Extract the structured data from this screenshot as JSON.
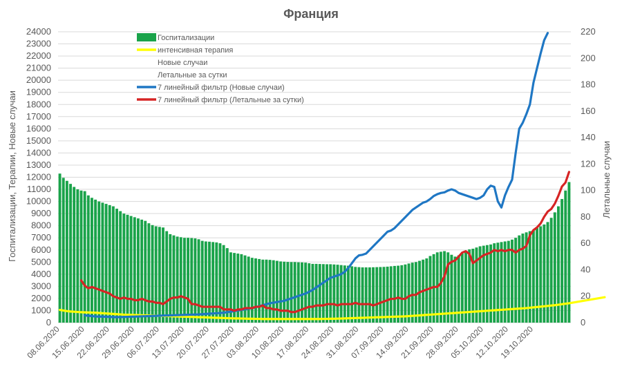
{
  "chart_data": {
    "type": "bar",
    "title": "Франция",
    "ylabel_left": "Госпитализации, Терапии, Новые случаи",
    "ylabel_right": "Летальные случаи",
    "ylim_left": [
      0,
      24000
    ],
    "ylim_right": [
      0,
      220
    ],
    "yticks_left": [
      0,
      1000,
      2000,
      3000,
      4000,
      5000,
      6000,
      7000,
      8000,
      9000,
      10000,
      11000,
      12000,
      13000,
      14000,
      15000,
      16000,
      17000,
      18000,
      19000,
      20000,
      21000,
      22000,
      23000,
      24000
    ],
    "yticks_right": [
      0,
      20,
      40,
      60,
      80,
      100,
      120,
      140,
      160,
      180,
      200,
      220
    ],
    "x_tick_labels": [
      "08.06.2020",
      "15.06.2020",
      "22.06.2020",
      "29.06.2020",
      "06.07.2020",
      "13.07.2020",
      "20.07.2020",
      "27.07.2020",
      "03.08.2020",
      "10.08.2020",
      "17.08.2020",
      "24.08.2020",
      "31.08.2020",
      "07.09.2020",
      "14.09.2020",
      "21.09.2020",
      "28.09.2020",
      "05.10.2020",
      "12.10.2020",
      "19.10.2020"
    ],
    "x_start": "08.06.2020",
    "x_end": "21.10.2020",
    "grid": true,
    "legend_position": "top-left",
    "legend": [
      "Госпитализации",
      "интенсивная терапия",
      "Новые случаи",
      "Летальные за сутки",
      "7 линейный фильтр (Новые случаи)",
      "7 линейный фильтр (Летальные за сутки)"
    ],
    "series": [
      {
        "name": "Госпитализации",
        "type": "bar",
        "axis": "left",
        "color": "#1aa34a",
        "values": [
          12300,
          11950,
          11700,
          11450,
          11200,
          11000,
          10900,
          10850,
          10500,
          10300,
          10150,
          10000,
          9900,
          9800,
          9700,
          9600,
          9400,
          9200,
          9000,
          8900,
          8800,
          8700,
          8600,
          8500,
          8400,
          8200,
          8050,
          7950,
          7900,
          7850,
          7550,
          7300,
          7200,
          7100,
          7050,
          7000,
          7000,
          6980,
          6950,
          6880,
          6750,
          6700,
          6680,
          6650,
          6620,
          6550,
          6400,
          6150,
          5800,
          5750,
          5700,
          5650,
          5550,
          5450,
          5350,
          5300,
          5250,
          5200,
          5200,
          5180,
          5150,
          5100,
          5050,
          5030,
          5010,
          5000,
          5000,
          4980,
          4970,
          4950,
          4900,
          4850,
          4850,
          4840,
          4830,
          4820,
          4820,
          4800,
          4780,
          4750,
          4720,
          4700,
          4650,
          4600,
          4580,
          4560,
          4560,
          4560,
          4570,
          4580,
          4590,
          4600,
          4620,
          4650,
          4680,
          4700,
          4740,
          4800,
          4880,
          4950,
          5000,
          5100,
          5200,
          5300,
          5500,
          5650,
          5800,
          5850,
          5900,
          5800,
          5600,
          5450,
          5550,
          5700,
          5900,
          6050,
          6100,
          6200,
          6300,
          6350,
          6400,
          6450,
          6550,
          6600,
          6650,
          6700,
          6750,
          6850,
          7000,
          7200,
          7350,
          7450,
          7550,
          7650,
          7800,
          7950,
          8100,
          8300,
          8650,
          9100,
          9600,
          10200,
          10900,
          11600
        ]
      },
      {
        "name": "интенсивная терапия",
        "type": "line",
        "axis": "left",
        "color": "#ffff00",
        "values": [
          1050,
          1000,
          950,
          920,
          900,
          880,
          860,
          850,
          840,
          830,
          820,
          800,
          780,
          760,
          740,
          720,
          700,
          680,
          660,
          650,
          640,
          630,
          620,
          610,
          600,
          590,
          580,
          570,
          560,
          550,
          540,
          530,
          520,
          510,
          500,
          490,
          480,
          470,
          460,
          450,
          440,
          430,
          420,
          410,
          400,
          390,
          380,
          370,
          360,
          350,
          350,
          340,
          330,
          320,
          320,
          310,
          310,
          300,
          300,
          300,
          300,
          300,
          300,
          300,
          300,
          300,
          300,
          300,
          300,
          300,
          300,
          300,
          300,
          300,
          310,
          310,
          320,
          320,
          330,
          340,
          350,
          360,
          370,
          380,
          390,
          400,
          410,
          420,
          430,
          440,
          450,
          460,
          470,
          480,
          490,
          500,
          510,
          520,
          540,
          560,
          580,
          600,
          620,
          640,
          660,
          680,
          700,
          720,
          740,
          760,
          780,
          800,
          820,
          840,
          860,
          880,
          900,
          920,
          940,
          960,
          980,
          1000,
          1020,
          1040,
          1060,
          1080,
          1100,
          1120,
          1140,
          1160,
          1180,
          1200,
          1230,
          1260,
          1290,
          1320,
          1350,
          1380,
          1410,
          1440,
          1480,
          1520,
          1560,
          1600,
          1650,
          1700,
          1750,
          1800,
          1850,
          1900,
          1950,
          2000,
          2050,
          2100
        ]
      },
      {
        "name": "7 линейный фильтр (Новые случаи)",
        "type": "line",
        "axis": "left",
        "color": "#1f77c4",
        "x_offset": 7,
        "values": [
          600,
          570,
          540,
          510,
          500,
          490,
          480,
          470,
          460,
          450,
          460,
          470,
          480,
          490,
          500,
          510,
          520,
          530,
          540,
          550,
          560,
          570,
          580,
          590,
          600,
          610,
          620,
          630,
          640,
          650,
          660,
          670,
          680,
          700,
          720,
          740,
          760,
          780,
          800,
          820,
          860,
          900,
          950,
          1000,
          1050,
          1100,
          1150,
          1200,
          1280,
          1360,
          1440,
          1520,
          1600,
          1650,
          1700,
          1750,
          1800,
          1900,
          2000,
          2100,
          2200,
          2300,
          2400,
          2550,
          2700,
          2900,
          3100,
          3300,
          3500,
          3700,
          3800,
          3900,
          4000,
          4200,
          4500,
          4900,
          5300,
          5550,
          5600,
          5700,
          6000,
          6300,
          6600,
          6900,
          7200,
          7500,
          7600,
          7800,
          8100,
          8400,
          8700,
          9000,
          9300,
          9500,
          9700,
          9900,
          10000,
          10200,
          10450,
          10600,
          10700,
          10750,
          10900,
          11000,
          10900,
          10700,
          10600,
          10500,
          10400,
          10300,
          10200,
          10300,
          10500,
          11000,
          11300,
          11200,
          10000,
          9500,
          10500,
          11200,
          11800,
          14000,
          16000,
          16500,
          17200,
          18000,
          19800,
          21000,
          22200,
          23300,
          23900
        ]
      },
      {
        "name": "7 линейный фильтр (Летальные за сутки)",
        "type": "line",
        "axis": "right",
        "color": "#d62424",
        "x_offset": 6,
        "values": [
          32,
          28,
          26,
          27,
          26,
          25,
          24,
          23,
          22,
          20,
          19,
          18,
          19,
          18,
          18,
          17,
          17,
          18,
          17,
          16,
          16,
          15,
          15,
          14,
          16,
          18,
          19,
          19,
          20,
          19,
          18,
          14,
          14,
          13,
          12,
          12,
          12,
          12,
          12,
          12,
          10,
          10,
          10,
          9,
          10,
          10,
          11,
          11,
          11,
          12,
          12,
          13,
          11,
          11,
          10,
          10,
          9,
          9,
          9,
          8,
          8,
          9,
          10,
          11,
          12,
          12,
          13,
          13,
          13,
          14,
          14,
          14,
          13,
          14,
          14,
          14,
          14,
          15,
          14,
          14,
          14,
          14,
          13,
          14,
          15,
          16,
          17,
          18,
          18,
          19,
          18,
          18,
          20,
          21,
          21,
          23,
          24,
          25,
          26,
          27,
          27,
          30,
          35,
          44,
          46,
          47,
          50,
          53,
          54,
          52,
          45,
          47,
          49,
          51,
          52,
          53,
          55,
          54,
          55,
          54,
          55,
          55,
          53,
          55,
          56,
          58,
          66,
          70,
          72,
          75,
          80,
          84,
          86,
          90,
          96,
          103,
          106,
          114
        ]
      }
    ]
  }
}
